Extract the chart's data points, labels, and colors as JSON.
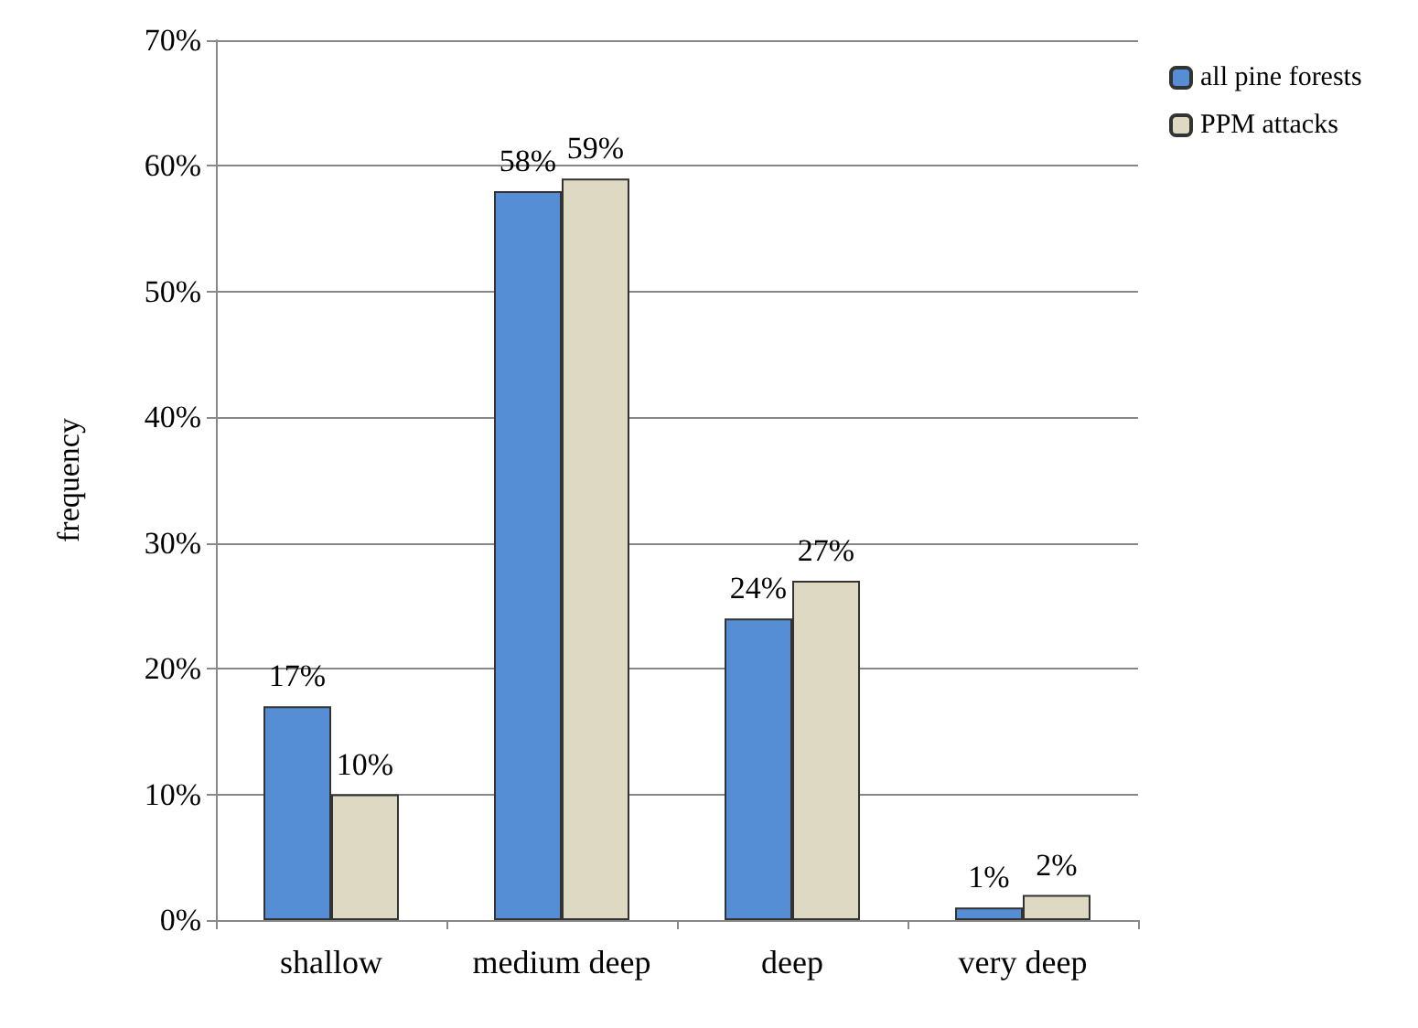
{
  "chart_data": {
    "type": "bar",
    "ylabel": "frequency",
    "categories": [
      "shallow",
      "medium deep",
      "deep",
      "very deep"
    ],
    "series": [
      {
        "name": "all pine forests",
        "color": "#558ed5",
        "values": [
          17,
          58,
          24,
          1
        ]
      },
      {
        "name": "PPM attacks",
        "color": "#ddd9c3",
        "values": [
          10,
          59,
          27,
          2
        ]
      }
    ],
    "ylim": [
      0,
      70
    ],
    "yticks": [
      {
        "value": 0,
        "label": "0%"
      },
      {
        "value": 10,
        "label": "10%"
      },
      {
        "value": 20,
        "label": "20%"
      },
      {
        "value": 30,
        "label": "30%"
      },
      {
        "value": 40,
        "label": "40%"
      },
      {
        "value": 50,
        "label": "50%"
      },
      {
        "value": 60,
        "label": "60%"
      },
      {
        "value": 70,
        "label": "70%"
      }
    ],
    "value_labels": [
      [
        "17%",
        "58%",
        "24%",
        "1%"
      ],
      [
        "10%",
        "59%",
        "27%",
        "2%"
      ]
    ],
    "grid": "y",
    "legend": "top right"
  }
}
